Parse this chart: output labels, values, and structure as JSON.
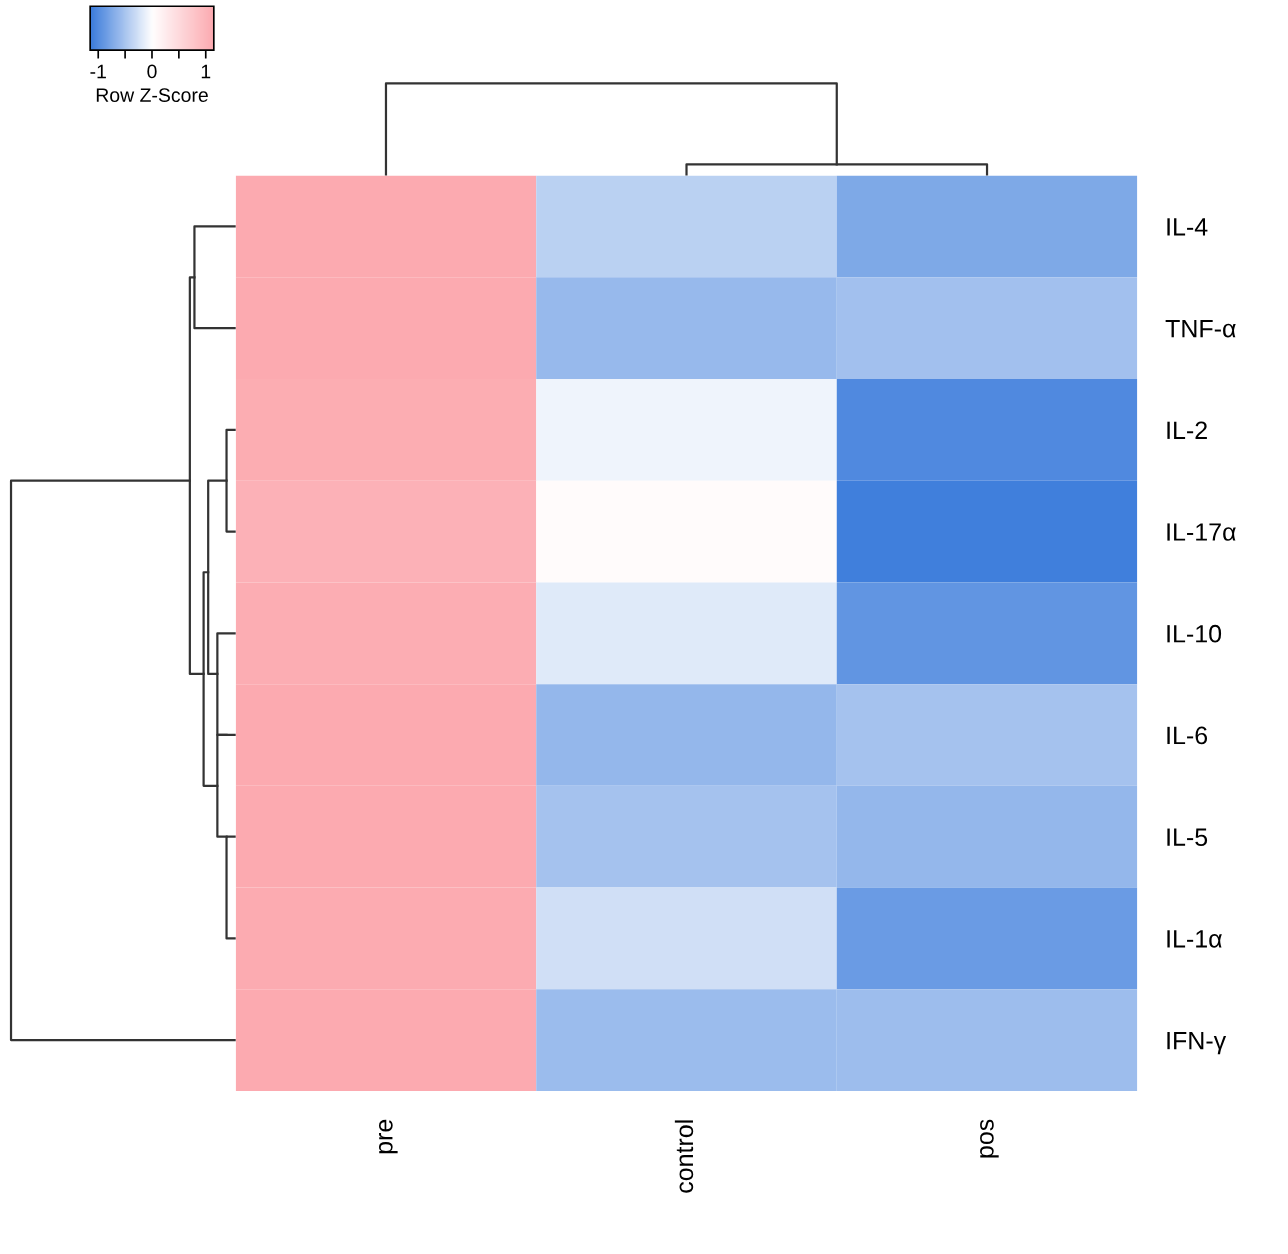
{
  "chart_data": {
    "type": "heatmap",
    "clabel": "Row Z-Score",
    "categories": [
      "pre",
      "control",
      "pos"
    ],
    "y_categories": [
      "IL-4",
      "TNF-α",
      "IL-2",
      "IL-17α",
      "IL-10",
      "IL-6",
      "IL-5",
      "IL-1α",
      "IFN-γ"
    ],
    "cells": [
      [
        1.15,
        -0.4,
        -0.75
      ],
      [
        1.15,
        -0.61,
        -0.54
      ],
      [
        1.11,
        -0.09,
        -1.02
      ],
      [
        1.05,
        0.06,
        -1.11
      ],
      [
        1.1,
        -0.18,
        -0.92
      ],
      [
        1.15,
        -0.62,
        -0.53
      ],
      [
        1.15,
        -0.53,
        -0.62
      ],
      [
        1.14,
        -0.27,
        -0.87
      ],
      [
        1.15,
        -0.58,
        -0.57
      ]
    ],
    "clim": [
      -1.15,
      1.15
    ],
    "cticks": [
      {
        "value": -1,
        "label": "-1"
      },
      {
        "value": -0.5,
        "label": null
      },
      0,
      {
        "value": 0.5,
        "label": null
      },
      1
    ]
  }
}
